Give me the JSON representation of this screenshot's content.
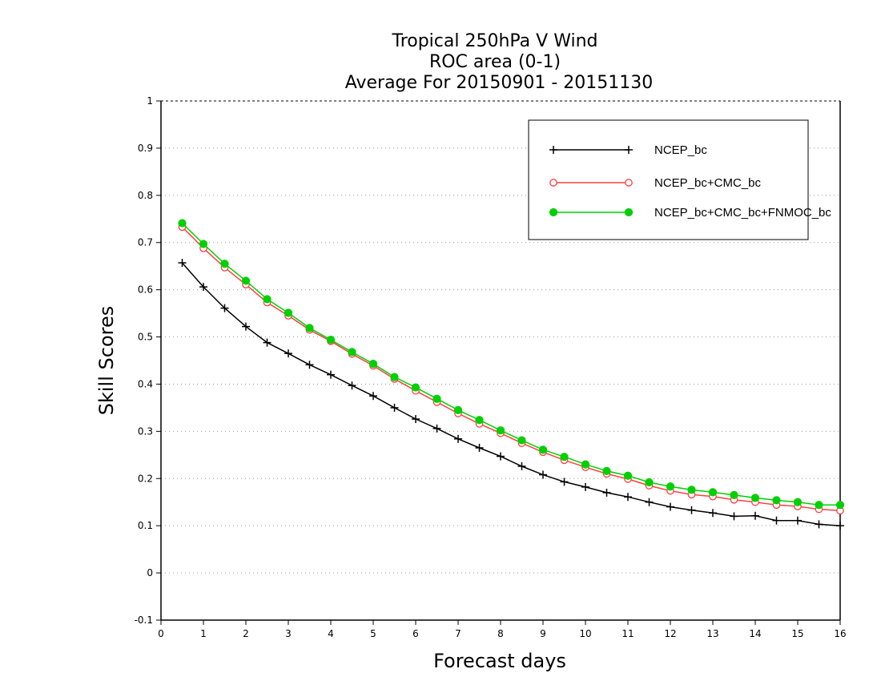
{
  "chart_data": {
    "type": "line",
    "title_lines": [
      "Tropical 250hPa V Wind",
      "ROC area (0-1)",
      "Average For 20150901 - 20151130"
    ],
    "xlabel": "Forecast days",
    "ylabel": "Skill Scores",
    "xlim": [
      0,
      16
    ],
    "ylim": [
      -0.1,
      1
    ],
    "xticks": [
      "0",
      "1",
      "2",
      "3",
      "4",
      "5",
      "6",
      "7",
      "8",
      "9",
      "10",
      "11",
      "12",
      "13",
      "14",
      "15",
      "16"
    ],
    "yticks": [
      "-0.1",
      "0",
      "0.1",
      "0.2",
      "0.3",
      "0.4",
      "0.5",
      "0.6",
      "0.7",
      "0.8",
      "0.9",
      "1"
    ],
    "grid": true,
    "legend_position": "top-right",
    "x": [
      0.5,
      1,
      1.5,
      2,
      2.5,
      3,
      3.5,
      4,
      4.5,
      5,
      5.5,
      6,
      6.5,
      7,
      7.5,
      8,
      8.5,
      9,
      9.5,
      10,
      10.5,
      11,
      11.5,
      12,
      12.5,
      13,
      13.5,
      14,
      14.5,
      15,
      15.5,
      16
    ],
    "series": [
      {
        "name": "NCEP_bc",
        "color": "#000000",
        "marker": "plus",
        "values": [
          0.657,
          0.606,
          0.561,
          0.522,
          0.488,
          0.465,
          0.441,
          0.42,
          0.397,
          0.375,
          0.35,
          0.326,
          0.306,
          0.284,
          0.265,
          0.247,
          0.226,
          0.208,
          0.193,
          0.182,
          0.17,
          0.161,
          0.15,
          0.14,
          0.133,
          0.127,
          0.12,
          0.121,
          0.111,
          0.111,
          0.103,
          0.1
        ]
      },
      {
        "name": "NCEP_bc+CMC_bc",
        "color": "#ff4040",
        "marker": "open-circle",
        "values": [
          0.733,
          0.688,
          0.647,
          0.611,
          0.573,
          0.545,
          0.515,
          0.491,
          0.464,
          0.439,
          0.411,
          0.386,
          0.362,
          0.338,
          0.316,
          0.296,
          0.275,
          0.256,
          0.239,
          0.224,
          0.21,
          0.199,
          0.185,
          0.174,
          0.166,
          0.162,
          0.155,
          0.15,
          0.144,
          0.141,
          0.135,
          0.132
        ]
      },
      {
        "name": "NCEP_bc+CMC_bc+FNMOC_bc",
        "color": "#00d000",
        "marker": "filled-circle",
        "values": [
          0.741,
          0.697,
          0.655,
          0.619,
          0.58,
          0.551,
          0.519,
          0.494,
          0.468,
          0.443,
          0.415,
          0.393,
          0.369,
          0.345,
          0.324,
          0.302,
          0.281,
          0.261,
          0.246,
          0.23,
          0.216,
          0.206,
          0.192,
          0.183,
          0.176,
          0.171,
          0.165,
          0.159,
          0.154,
          0.15,
          0.144,
          0.144
        ]
      }
    ]
  }
}
